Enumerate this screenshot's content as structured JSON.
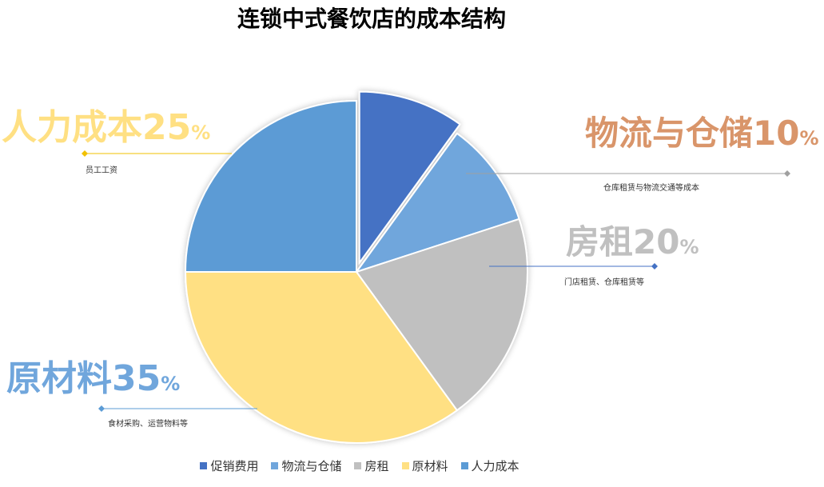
{
  "chart_data": {
    "type": "pie",
    "title": "连锁中式餐饮店的成本结构",
    "slices": [
      {
        "name": "促销费用",
        "value": 10,
        "color": "#4472c4"
      },
      {
        "name": "物流与仓储",
        "value": 10,
        "color": "#70a6dc"
      },
      {
        "name": "房租",
        "value": 20,
        "color": "#c0c0c0"
      },
      {
        "name": "原材料",
        "value": 35,
        "color": "#ffe083"
      },
      {
        "name": "人力成本",
        "value": 25,
        "color": "#5b9bd5"
      }
    ],
    "legend_position": "bottom"
  },
  "callouts": {
    "logistics": {
      "label": "物流与仓储",
      "value": "10",
      "unit": "%",
      "desc": "仓库租赁与物流交通等成本",
      "color": "#d9956a",
      "line_color": "#a0a0a0"
    },
    "rent": {
      "label": "房租",
      "value": "20",
      "unit": "%",
      "desc": "门店租赁、仓库租赁等",
      "color": "#c0c0c0",
      "line_color": "#4472c4"
    },
    "materials": {
      "label": "原材料",
      "value": "35",
      "unit": "%",
      "desc": "食材采购、运营物料等",
      "color": "#70a6dc",
      "line_color": "#5b9bd5"
    },
    "labor": {
      "label": "人力成本",
      "value": "25",
      "unit": "%",
      "desc": "员工工资",
      "color": "#ffe083",
      "line_color": "#f2c100"
    }
  }
}
